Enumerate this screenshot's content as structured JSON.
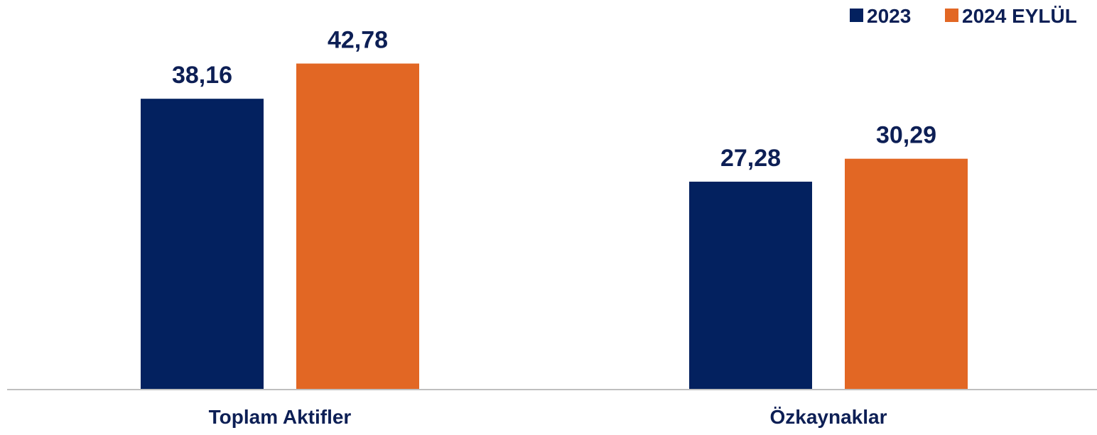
{
  "chart_data": {
    "type": "bar",
    "categories": [
      "Toplam Aktifler",
      "Özkaynaklar"
    ],
    "series": [
      {
        "name": "2023",
        "values": [
          38.16,
          27.28
        ],
        "labels": [
          "38,16",
          "27,28"
        ],
        "color": "#03215f"
      },
      {
        "name": "2024 EYLÜL",
        "values": [
          42.78,
          30.29
        ],
        "labels": [
          "42,78",
          "30,29"
        ],
        "color": "#e26724"
      }
    ],
    "title": "",
    "xlabel": "",
    "ylabel": "",
    "ylim": [
      0,
      45
    ],
    "grid": false,
    "legend_position": "top-right",
    "axis_color": "#bfbfbf"
  }
}
